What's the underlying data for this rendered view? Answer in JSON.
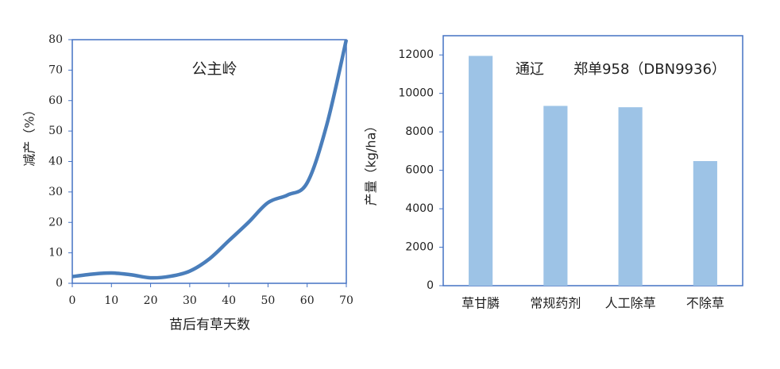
{
  "chart_data": [
    {
      "type": "line",
      "annotation": "公主岭",
      "annotation_color": "#c55a11",
      "x_label": "苗后有草天数",
      "y_label": "减产（%）",
      "x": [
        0,
        5,
        10,
        15,
        20,
        25,
        30,
        35,
        40,
        45,
        50,
        55,
        60,
        65,
        70
      ],
      "series": [
        {
          "color": "#4a7ebb",
          "values": [
            2.2,
            3,
            3.4,
            2.8,
            1.8,
            2.3,
            4,
            8,
            14,
            20,
            26.5,
            29,
            33,
            52,
            80
          ]
        }
      ],
      "xlim": [
        0,
        70
      ],
      "xticks": [
        0,
        10,
        20,
        30,
        40,
        50,
        60,
        70
      ],
      "ylim": [
        0,
        80
      ],
      "yticks": [
        0,
        10,
        20,
        30,
        40,
        50,
        60,
        70,
        80
      ]
    },
    {
      "type": "bar",
      "annotation": "通辽",
      "annotation_color": "#c55a11",
      "subtitle": "郑单958（DBN9936）",
      "y_label": "产量（kg/ha）",
      "categories": [
        "草甘膦",
        "常规药剂",
        "人工除草",
        "不除草"
      ],
      "values": [
        11950,
        9350,
        9280,
        6480
      ],
      "color": "#9dc3e6",
      "ylim": [
        0,
        13000
      ],
      "yticks": [
        0,
        2000,
        4000,
        6000,
        8000,
        10000,
        12000
      ]
    }
  ]
}
